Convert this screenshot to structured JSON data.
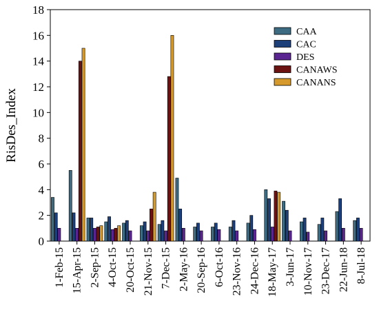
{
  "chart_data": {
    "type": "bar",
    "title": "",
    "xlabel": "",
    "ylabel": "RisDes_Index",
    "ylim": [
      0,
      18
    ],
    "yticks": [
      0,
      2,
      4,
      6,
      8,
      10,
      12,
      14,
      16,
      18
    ],
    "grid": false,
    "legend_position": "top-right",
    "categories": [
      "1-Feb-15",
      "15-Apr-15",
      "2-Sep-15",
      "4-Oct-15",
      "20-Oct-15",
      "21-Nov-15",
      "7-Dec-15",
      "2-May-16",
      "20-Sep-16",
      "6-Oct-16",
      "23-Nov-16",
      "24-Dec-16",
      "18-May-17",
      "3-Jun-17",
      "10-Nov-17",
      "23-Dec-17",
      "22-Jun-18",
      "8-Jul-18"
    ],
    "series": [
      {
        "name": "CAA",
        "color": "#3d6b82",
        "values": [
          3.4,
          5.5,
          1.8,
          1.5,
          1.4,
          1.2,
          1.3,
          4.9,
          1.1,
          1.1,
          1.1,
          1.4,
          4.0,
          3.1,
          1.5,
          1.3,
          2.3,
          1.6
        ]
      },
      {
        "name": "CAC",
        "color": "#1d3f7a",
        "values": [
          2.2,
          2.2,
          1.8,
          1.9,
          1.6,
          1.5,
          1.6,
          2.5,
          1.4,
          1.4,
          1.6,
          2.0,
          3.3,
          2.4,
          1.8,
          1.8,
          3.3,
          1.8
        ]
      },
      {
        "name": "DES",
        "color": "#5a2590",
        "values": [
          1.0,
          1.0,
          1.0,
          0.9,
          0.8,
          0.8,
          0.8,
          1.0,
          0.8,
          0.9,
          0.8,
          0.9,
          1.1,
          0.8,
          0.7,
          0.8,
          1.0,
          1.0
        ]
      },
      {
        "name": "CANAWS",
        "color": "#6b1212",
        "values": [
          0,
          14.0,
          1.1,
          1.0,
          0,
          2.5,
          12.8,
          0,
          0,
          0,
          0,
          0,
          3.9,
          0,
          0,
          0,
          0,
          0
        ]
      },
      {
        "name": "CANANS",
        "color": "#d69a2c",
        "values": [
          0,
          15.0,
          1.2,
          1.2,
          0,
          3.8,
          16.0,
          0,
          0,
          0,
          0,
          0,
          3.8,
          0,
          0,
          0,
          0,
          0
        ]
      }
    ]
  }
}
